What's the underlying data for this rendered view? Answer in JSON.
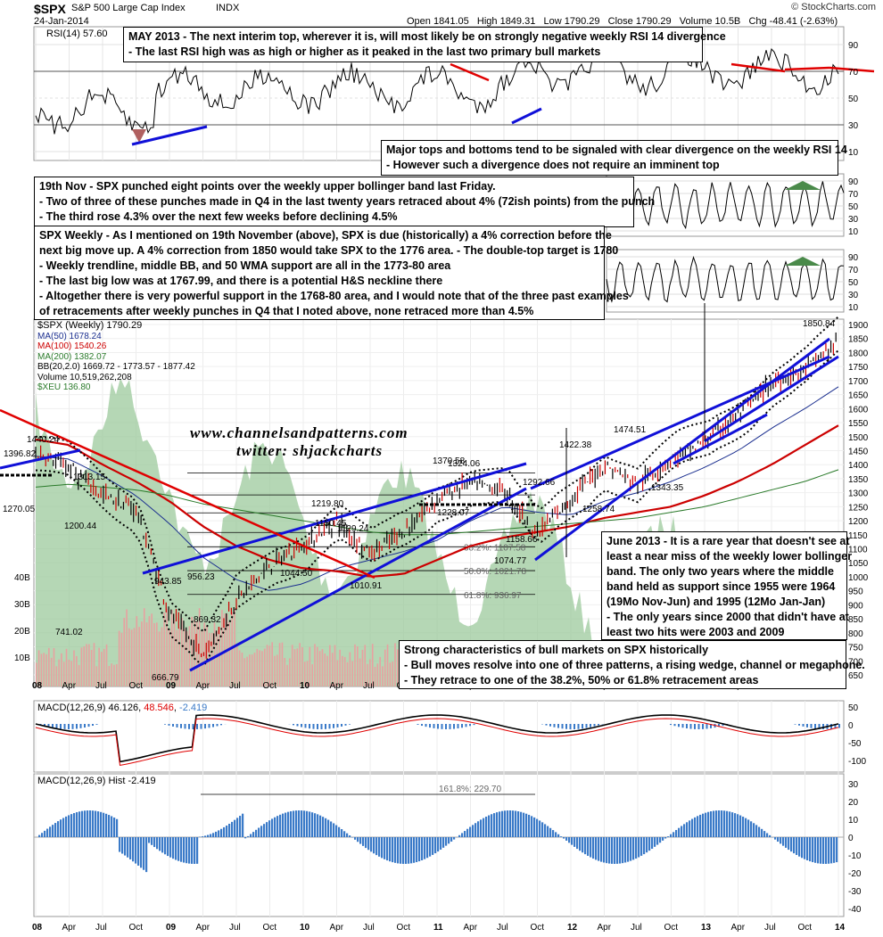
{
  "header": {
    "symbol": "$SPX",
    "name": "S&P 500 Large Cap Index",
    "exchange": "INDX",
    "date": "24-Jan-2014",
    "brand": "© StockCharts.com",
    "ohlc": "Open 1841.05   High 1849.31   Low 1790.29   Close 1790.29   Volume 10.5B   Chg -48.41 (-2.63%)"
  },
  "watermark": {
    "site": "www.channelsandpatterns.com",
    "twitter": "twitter: shjackcharts"
  },
  "colors": {
    "price_up": "#000000",
    "price_down": "#cc0000",
    "ma50": "#1b2f8f",
    "ma100": "#cc0000",
    "ma200": "#2a7a2a",
    "bb": "#000000",
    "xeu_fill": "#9cc99c",
    "trendline": "#1010d8",
    "macd_line": "#000000",
    "signal_line": "#e00000",
    "hist": "#3a7ac8",
    "volume": "#e8a0a0"
  },
  "panels": {
    "rsi": {
      "label": "RSI(14) 57.60",
      "ticks": [
        "90",
        "70",
        "50",
        "30",
        "10"
      ],
      "ticks2": [
        "90",
        "70",
        "50",
        "30",
        "10"
      ],
      "ticks3": [
        "90",
        "70",
        "50",
        "30",
        "10"
      ]
    },
    "price": {
      "legend": [
        "$SPX (Weekly) 1790.29",
        "MA(50) 1678.24",
        "MA(100) 1540.26",
        "MA(200) 1382.07",
        "BB(20,2.0) 1669.72 - 1773.57 - 1877.42",
        "Volume 10,519,262,208",
        "$XEU 136.80"
      ],
      "right_ticks": [
        "1900",
        "1850",
        "1800",
        "1750",
        "1700",
        "1650",
        "1600",
        "1550",
        "1500",
        "1450",
        "1400",
        "1350",
        "1300",
        "1250",
        "1200",
        "1150",
        "1100",
        "1050",
        "1000",
        "950",
        "900",
        "850",
        "800",
        "750",
        "700",
        "650"
      ],
      "volume_ticks": [
        "40B",
        "30B",
        "20B",
        "10B"
      ],
      "level_labels": [
        {
          "text": "1850.84"
        },
        {
          "text": "1474.51"
        },
        {
          "text": "1422.38"
        },
        {
          "text": "1343.35"
        },
        {
          "text": "1370.58"
        },
        {
          "text": "1292.66"
        },
        {
          "text": "1258.74"
        },
        {
          "text": "1219.80"
        },
        {
          "text": "1150.45"
        },
        {
          "text": "1129.24"
        },
        {
          "text": "1158.66"
        },
        {
          "text": "1074.77"
        },
        {
          "text": "1044.50"
        },
        {
          "text": "1010.91"
        },
        {
          "text": "956.23"
        },
        {
          "text": "943.85"
        },
        {
          "text": "869.32"
        },
        {
          "text": "741.02"
        },
        {
          "text": "666.79"
        },
        {
          "text": "1440.24"
        },
        {
          "text": "1396.82"
        },
        {
          "text": "1313.15"
        },
        {
          "text": "1270.05"
        },
        {
          "text": "1200.44"
        },
        {
          "text": "1324.06"
        },
        {
          "text": "1228.07"
        }
      ],
      "fib_labels": [
        "38.2%: 1107.58",
        "50.0%: 1021.78",
        "61.8%: 936.97"
      ]
    },
    "macd": {
      "label": "MACD(12,26,9)",
      "macd": "46.126",
      "signal": "48.546",
      "hist": "-2.419",
      "ticks": [
        "50",
        "0",
        "-50",
        "-100"
      ]
    },
    "hist": {
      "label": "MACD(12,26,9) Hist -2.419",
      "fib": "161.8%: 229.70",
      "ticks": [
        "30",
        "20",
        "10",
        "0",
        "-10",
        "-20",
        "-30",
        "-40"
      ]
    }
  },
  "x_labels": [
    "08",
    "Apr",
    "Jul",
    "Oct",
    "09",
    "Apr",
    "Jul",
    "Oct",
    "10",
    "Apr",
    "Jul",
    "Oct",
    "11",
    "Apr",
    "Jul",
    "Oct",
    "12",
    "Apr",
    "Jul",
    "Oct",
    "13",
    "Apr",
    "Jul",
    "Oct",
    "14"
  ],
  "notes": {
    "may2013": [
      "MAY 2013 - The next interim top, wherever it is, will most likely be on strongly negative weekly RSI 14 divergence",
      "- The last RSI high was as high or higher as it peaked in the last two primary bull markets"
    ],
    "major": [
      "Major tops and bottoms tend to be signaled with clear divergence on the weekly RSI 14",
      "- However such a divergence does not require an imminent top"
    ],
    "nov19": [
      "19th Nov - SPX punched eight points over the weekly upper bollinger band last Friday.",
      "- Two of three of these punches made in Q4 in the last twenty years retraced about 4% (72ish points) from the punch",
      "- The third rose 4.3% over the next few weeks before declining 4.5%"
    ],
    "weekly": [
      "SPX Weekly - As I mentioned on 19th November (above), SPX is due (historically) a 4% correction before the",
      "next big move up. A 4% correction from 1850 would take SPX to the 1776 area. - The double-top target is 1780",
      "- Weekly trendline, middle BB, and 50 WMA support are all in the 1773-80 area",
      "- The last big low was at 1767.99, and there is a potential H&S neckline there",
      "- Altogether there is very powerful support in the 1768-80 area, and I would note that of the three past examples",
      "of retracements after weekly punches in Q4 that I noted above, none retraced more than 4.5%"
    ],
    "june2013": [
      "June 2013 - It is a rare year that doesn't see at",
      "least a near miss of the weekly lower bollinger",
      "band. The only two years where the middle",
      "band held as support since 1955 were 1964",
      "(19Mo Nov-Jun) and 1995 (12Mo Jan-Jan)",
      "- The only years since 2000 that didn't have at",
      "least two hits were 2003 and 2009"
    ],
    "bull": [
      "Strong characteristics of bull markets on SPX historically",
      "- Bull moves resolve into one of three patterns, a rising wedge, channel or megaphone.",
      "- They retrace to one of the 38.2%, 50% or 61.8% retracement areas"
    ]
  },
  "chart_data": {
    "type": "line",
    "title": "$SPX S&P 500 Large Cap Index INDX",
    "x": [
      "08",
      "Apr",
      "Jul",
      "Oct",
      "09",
      "Apr",
      "Jul",
      "Oct",
      "10",
      "Apr",
      "Jul",
      "Oct",
      "11",
      "Apr",
      "Jul",
      "Oct",
      "12",
      "Apr",
      "Jul",
      "Oct",
      "13",
      "Apr",
      "Jul",
      "Oct",
      "14"
    ],
    "series": [
      {
        "name": "$SPX (Weekly)",
        "values": [
          1440,
          1390,
          1290,
          1240,
          870,
          720,
          920,
          1040,
          1110,
          1200,
          1080,
          1160,
          1280,
          1340,
          1310,
          1150,
          1280,
          1400,
          1330,
          1420,
          1480,
          1580,
          1690,
          1740,
          1840
        ]
      },
      {
        "name": "MA(50)",
        "values": [
          1430,
          1420,
          1360,
          1290,
          1190,
          1070,
          990,
          950,
          975,
          1030,
          1060,
          1090,
          1130,
          1200,
          1250,
          1230,
          1220,
          1270,
          1300,
          1340,
          1390,
          1450,
          1530,
          1600,
          1678
        ]
      },
      {
        "name": "MA(100)",
        "values": [
          1490,
          1470,
          1400,
          1340,
          1270,
          1180,
          1110,
          1060,
          1030,
          1020,
          1000,
          1010,
          1060,
          1110,
          1140,
          1160,
          1180,
          1210,
          1230,
          1250,
          1290,
          1340,
          1400,
          1470,
          1540
        ]
      },
      {
        "name": "MA(200)",
        "values": [
          1320,
          1330,
          1320,
          1310,
          1290,
          1260,
          1240,
          1220,
          1200,
          1180,
          1160,
          1150,
          1150,
          1160,
          1170,
          1180,
          1190,
          1200,
          1210,
          1230,
          1250,
          1280,
          1310,
          1340,
          1382
        ]
      }
    ],
    "ylim": [
      650,
      1900
    ],
    "xlabel": "",
    "ylabel": "",
    "grid": true
  }
}
